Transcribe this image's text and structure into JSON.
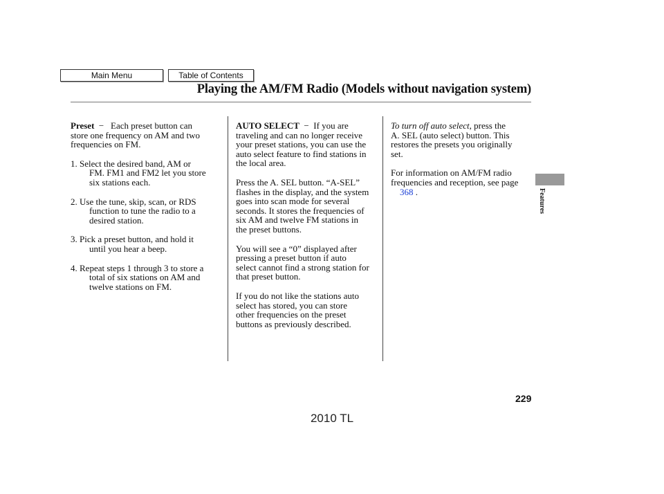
{
  "nav": {
    "main_menu": "Main Menu",
    "toc": "Table of Contents"
  },
  "header": {
    "title": "Playing the AM/FM Radio (Models without navigation system)"
  },
  "col1": {
    "heading": "Preset",
    "dash": "−",
    "intro": [
      "Each preset button can",
      "store one frequency on AM and two",
      "frequencies on FM."
    ],
    "steps": [
      [
        "1. Select the desired band, AM or",
        "FM. FM1 and FM2 let you store",
        "six stations each."
      ],
      [
        "2. Use the tune, skip, scan, or RDS",
        "function to tune the radio to a",
        "desired station."
      ],
      [
        "3. Pick a preset button, and hold it",
        "until you hear a beep."
      ],
      [
        "4. Repeat steps 1 through 3 to store a",
        "total of six stations on AM and",
        "twelve stations on FM."
      ]
    ]
  },
  "col2": {
    "heading": "AUTO SELECT",
    "dash": "−",
    "intro": [
      "If you are",
      "traveling and can no longer receive",
      "your preset stations, you can use the",
      "auto select feature to find stations in",
      "the local area."
    ],
    "paras": [
      [
        "Press the A. SEL button. “A-SEL”",
        "flashes in the display, and the system",
        "goes into scan mode for several",
        "seconds. It stores the frequencies of",
        "six AM and twelve FM stations in",
        "the preset buttons."
      ],
      [
        "You will see a “0” displayed after",
        "pressing a preset button if auto",
        "select cannot find a strong station for",
        "that preset button."
      ],
      [
        "If you do not like the stations auto",
        "select has stored, you can store",
        "other frequencies on the preset",
        "buttons as previously described."
      ]
    ]
  },
  "col3": {
    "italic_lead": "To turn off auto select,",
    "lead_rest": " press the",
    "p1": [
      "A. SEL (auto select) button. This",
      "restores the presets you originally",
      "set."
    ],
    "p2": [
      "For information on AM/FM radio",
      "frequencies and reception, see page"
    ],
    "page_link": "368",
    "period": " ."
  },
  "side_tab": {
    "label": "Features",
    "color": "#999999"
  },
  "page_number": "229",
  "footer_model": "2010 TL"
}
